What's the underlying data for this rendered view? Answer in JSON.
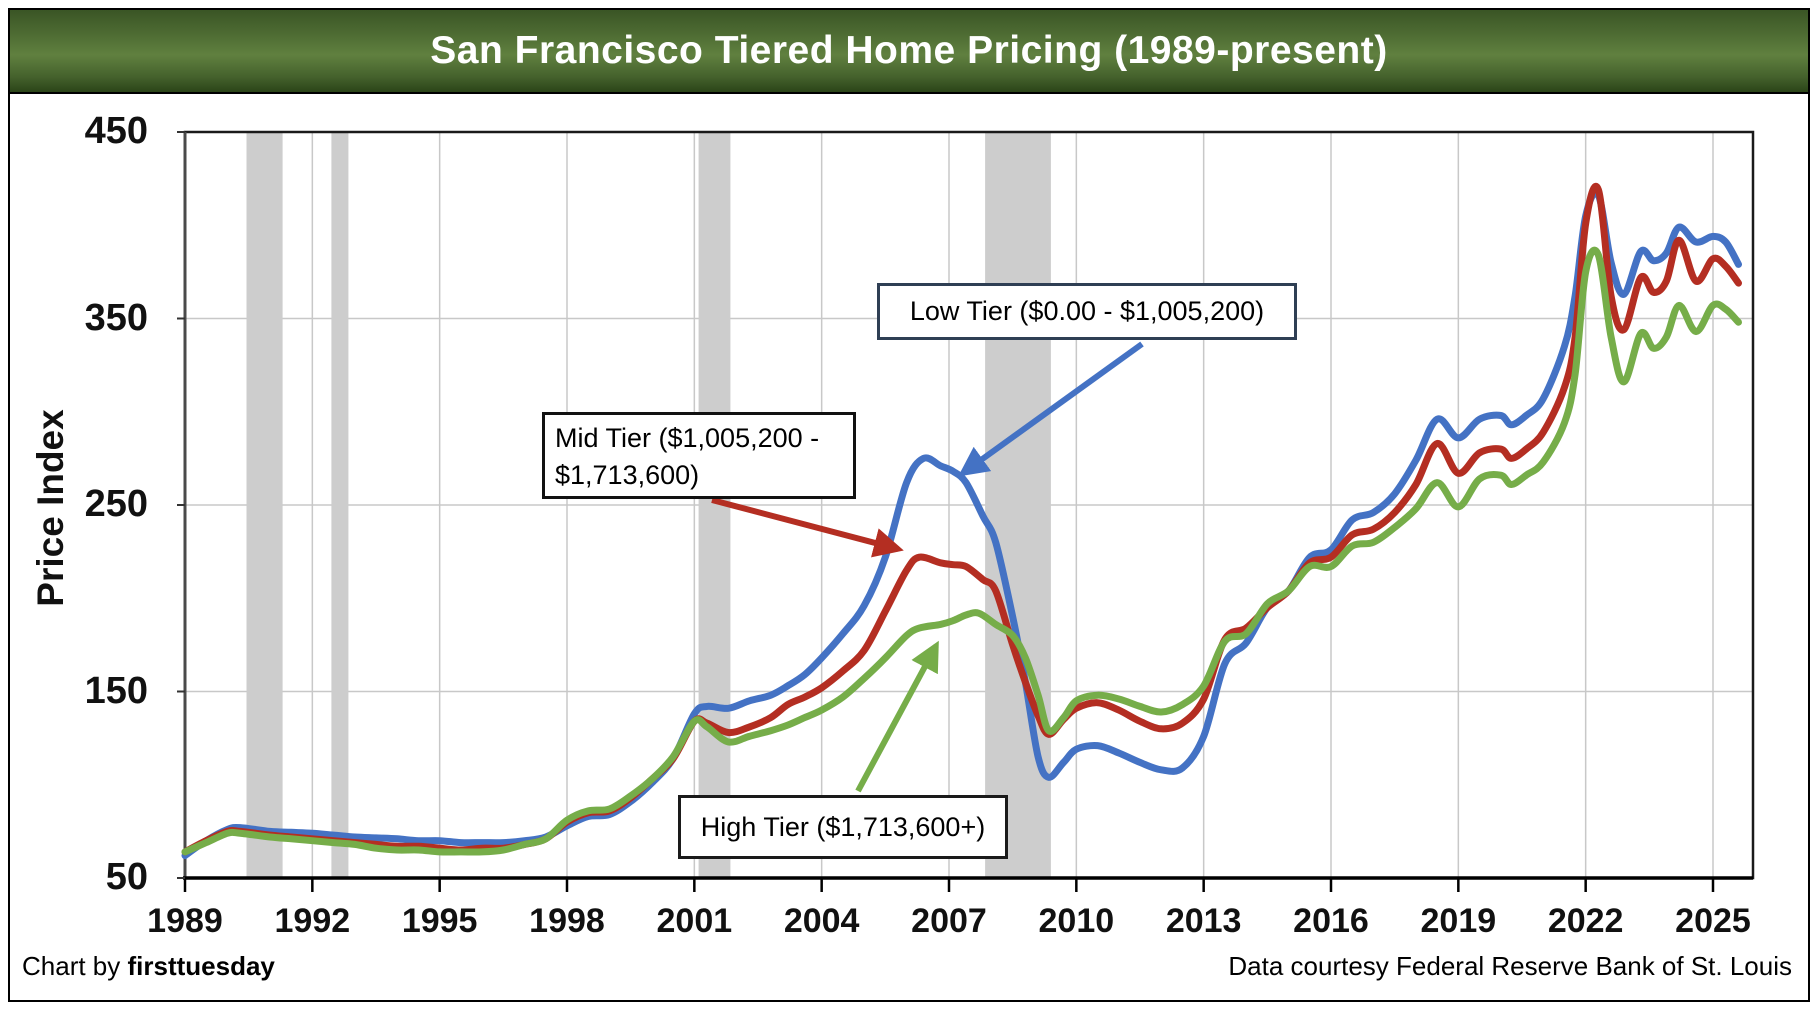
{
  "title": "San Francisco Tiered Home Pricing (1989-present)",
  "y_axis": {
    "label": "Price Index",
    "ticks": [
      450,
      350,
      250,
      150,
      50
    ]
  },
  "x_axis": {
    "ticks": [
      1989,
      1992,
      1995,
      1998,
      2001,
      2004,
      2007,
      2010,
      2013,
      2016,
      2019,
      2022,
      2025
    ]
  },
  "footer": {
    "left_prefix": "Chart by ",
    "left_brand": "firsttuesday",
    "right": "Data courtesy Federal Reserve Bank of St. Louis"
  },
  "colors": {
    "low": "#4472c4",
    "mid": "#b42e22",
    "high": "#76ad49",
    "recession_band": "#cdcdcd",
    "gridline": "#c8c8c8",
    "annotation_border_low": "#2f3f54",
    "title_bar_green": "#4e6c33"
  },
  "chart_data": {
    "type": "line",
    "title": "San Francisco Tiered Home Pricing (1989-present)",
    "xlabel": "",
    "ylabel": "Price Index",
    "ylim": [
      50,
      450
    ],
    "xlim": [
      1989,
      2025.9
    ],
    "grid": true,
    "legend_position": "inline-annotation-boxes",
    "recession_bands": [
      [
        1990.45,
        1991.3
      ],
      [
        1992.45,
        1992.85
      ],
      [
        2001.1,
        2001.85
      ],
      [
        2007.85,
        2009.4
      ]
    ],
    "annotations": {
      "low": {
        "label": "Low Tier ($0.00 - $1,005,200)"
      },
      "mid": {
        "label": "Mid Tier ($1,005,200 - $1,713,600)",
        "lines": [
          "Mid Tier ($1,005,200 -",
          "$1,713,600)"
        ]
      },
      "high": {
        "label": "High Tier ($1,713,600+)"
      }
    },
    "series": [
      {
        "name": "Low Tier",
        "range": "$0.00 - $1,005,200",
        "color_key": "low",
        "points": [
          [
            1989,
            62
          ],
          [
            1989.5,
            70
          ],
          [
            1990,
            76
          ],
          [
            1990.3,
            77
          ],
          [
            1991,
            75
          ],
          [
            1991.5,
            74.5
          ],
          [
            1992,
            74
          ],
          [
            1992.5,
            73
          ],
          [
            1993,
            72
          ],
          [
            1993.5,
            71.5
          ],
          [
            1994,
            71
          ],
          [
            1994.5,
            70
          ],
          [
            1995,
            70
          ],
          [
            1995.5,
            69
          ],
          [
            1996,
            69
          ],
          [
            1996.5,
            69
          ],
          [
            1997,
            70
          ],
          [
            1997.5,
            72
          ],
          [
            1998,
            78
          ],
          [
            1998.5,
            83
          ],
          [
            1999,
            84
          ],
          [
            1999.5,
            91
          ],
          [
            2000,
            101
          ],
          [
            2000.5,
            114
          ],
          [
            2001,
            138
          ],
          [
            2001.3,
            142
          ],
          [
            2001.8,
            141
          ],
          [
            2002.3,
            145
          ],
          [
            2002.8,
            148
          ],
          [
            2003.2,
            153
          ],
          [
            2003.6,
            159
          ],
          [
            2004,
            168
          ],
          [
            2004.5,
            181
          ],
          [
            2005,
            196
          ],
          [
            2005.5,
            222
          ],
          [
            2006,
            262
          ],
          [
            2006.4,
            275
          ],
          [
            2006.8,
            271
          ],
          [
            2007.1,
            268
          ],
          [
            2007.4,
            262
          ],
          [
            2007.8,
            244
          ],
          [
            2008.1,
            230
          ],
          [
            2008.5,
            190
          ],
          [
            2008.8,
            155
          ],
          [
            2009.1,
            115
          ],
          [
            2009.35,
            104
          ],
          [
            2009.7,
            112
          ],
          [
            2010,
            119
          ],
          [
            2010.5,
            121
          ],
          [
            2011,
            117
          ],
          [
            2011.5,
            112
          ],
          [
            2012,
            108
          ],
          [
            2012.5,
            109
          ],
          [
            2013,
            126
          ],
          [
            2013.5,
            165
          ],
          [
            2014,
            176
          ],
          [
            2014.5,
            195
          ],
          [
            2015,
            204
          ],
          [
            2015.5,
            222
          ],
          [
            2016,
            226
          ],
          [
            2016.5,
            242
          ],
          [
            2017,
            246
          ],
          [
            2017.5,
            256
          ],
          [
            2018,
            274
          ],
          [
            2018.5,
            296
          ],
          [
            2019,
            286
          ],
          [
            2019.5,
            296
          ],
          [
            2020,
            298
          ],
          [
            2020.25,
            293
          ],
          [
            2020.6,
            298
          ],
          [
            2021,
            307
          ],
          [
            2021.5,
            335
          ],
          [
            2021.75,
            362
          ],
          [
            2022,
            405
          ],
          [
            2022.3,
            416
          ],
          [
            2022.6,
            380
          ],
          [
            2022.9,
            363
          ],
          [
            2023.3,
            386
          ],
          [
            2023.6,
            381
          ],
          [
            2023.9,
            385
          ],
          [
            2024.2,
            399
          ],
          [
            2024.6,
            391
          ],
          [
            2025,
            394
          ],
          [
            2025.3,
            391
          ],
          [
            2025.6,
            379
          ]
        ]
      },
      {
        "name": "Mid Tier",
        "range": "$1,005,200 - $1,713,600",
        "color_key": "mid",
        "points": [
          [
            1989,
            64
          ],
          [
            1989.5,
            70
          ],
          [
            1990,
            75
          ],
          [
            1990.3,
            75
          ],
          [
            1991,
            73
          ],
          [
            1991.5,
            72
          ],
          [
            1992,
            71
          ],
          [
            1992.5,
            70
          ],
          [
            1993,
            69
          ],
          [
            1993.5,
            68
          ],
          [
            1994,
            67
          ],
          [
            1994.5,
            67
          ],
          [
            1995,
            66
          ],
          [
            1995.5,
            65
          ],
          [
            1996,
            66
          ],
          [
            1996.5,
            66
          ],
          [
            1997,
            68
          ],
          [
            1997.5,
            71
          ],
          [
            1998,
            80
          ],
          [
            1998.5,
            85
          ],
          [
            1999,
            86
          ],
          [
            1999.5,
            93
          ],
          [
            2000,
            103
          ],
          [
            2000.5,
            114
          ],
          [
            2001,
            134
          ],
          [
            2001.3,
            133
          ],
          [
            2001.8,
            128
          ],
          [
            2002.3,
            131
          ],
          [
            2002.8,
            136
          ],
          [
            2003.2,
            143
          ],
          [
            2003.6,
            147
          ],
          [
            2004,
            152
          ],
          [
            2004.5,
            161
          ],
          [
            2005,
            172
          ],
          [
            2005.5,
            193
          ],
          [
            2006,
            215
          ],
          [
            2006.3,
            222
          ],
          [
            2006.8,
            219
          ],
          [
            2007.1,
            218
          ],
          [
            2007.4,
            217
          ],
          [
            2007.8,
            210
          ],
          [
            2008.1,
            204
          ],
          [
            2008.5,
            175
          ],
          [
            2008.8,
            155
          ],
          [
            2009.1,
            137
          ],
          [
            2009.35,
            127
          ],
          [
            2009.7,
            135
          ],
          [
            2010,
            141
          ],
          [
            2010.5,
            144
          ],
          [
            2011,
            140
          ],
          [
            2011.5,
            134
          ],
          [
            2012,
            130
          ],
          [
            2012.5,
            133
          ],
          [
            2013,
            146
          ],
          [
            2013.5,
            178
          ],
          [
            2014,
            184
          ],
          [
            2014.5,
            195
          ],
          [
            2015,
            204
          ],
          [
            2015.5,
            219
          ],
          [
            2016,
            222
          ],
          [
            2016.5,
            234
          ],
          [
            2017,
            237
          ],
          [
            2017.5,
            246
          ],
          [
            2018,
            261
          ],
          [
            2018.5,
            283
          ],
          [
            2019,
            267
          ],
          [
            2019.5,
            278
          ],
          [
            2020,
            280
          ],
          [
            2020.25,
            275
          ],
          [
            2020.6,
            280
          ],
          [
            2021,
            289
          ],
          [
            2021.5,
            313
          ],
          [
            2021.75,
            340
          ],
          [
            2022,
            401
          ],
          [
            2022.3,
            419
          ],
          [
            2022.6,
            362
          ],
          [
            2022.9,
            344
          ],
          [
            2023.3,
            372
          ],
          [
            2023.6,
            364
          ],
          [
            2023.9,
            370
          ],
          [
            2024.2,
            392
          ],
          [
            2024.6,
            370
          ],
          [
            2025,
            382
          ],
          [
            2025.3,
            378
          ],
          [
            2025.6,
            369
          ]
        ]
      },
      {
        "name": "High Tier",
        "range": "$1,713,600+",
        "color_key": "high",
        "points": [
          [
            1989,
            64
          ],
          [
            1989.5,
            69
          ],
          [
            1990,
            74
          ],
          [
            1990.3,
            74
          ],
          [
            1991,
            72
          ],
          [
            1991.5,
            71
          ],
          [
            1992,
            70
          ],
          [
            1992.5,
            69
          ],
          [
            1993,
            68
          ],
          [
            1993.5,
            66
          ],
          [
            1994,
            65
          ],
          [
            1994.5,
            65
          ],
          [
            1995,
            64
          ],
          [
            1995.5,
            64
          ],
          [
            1996,
            64
          ],
          [
            1996.5,
            65
          ],
          [
            1997,
            68
          ],
          [
            1997.5,
            71
          ],
          [
            1998,
            81
          ],
          [
            1998.5,
            86
          ],
          [
            1999,
            87
          ],
          [
            1999.5,
            94
          ],
          [
            2000,
            103
          ],
          [
            2000.5,
            115
          ],
          [
            2001,
            134
          ],
          [
            2001.3,
            131
          ],
          [
            2001.8,
            123
          ],
          [
            2002.3,
            126
          ],
          [
            2002.8,
            129
          ],
          [
            2003.2,
            132
          ],
          [
            2003.6,
            136
          ],
          [
            2004,
            140
          ],
          [
            2004.5,
            147
          ],
          [
            2005,
            157
          ],
          [
            2005.5,
            168
          ],
          [
            2006,
            180
          ],
          [
            2006.3,
            184
          ],
          [
            2006.8,
            186
          ],
          [
            2007.1,
            188
          ],
          [
            2007.4,
            191
          ],
          [
            2007.7,
            192
          ],
          [
            2008.1,
            186
          ],
          [
            2008.5,
            180
          ],
          [
            2008.8,
            168
          ],
          [
            2009.1,
            148
          ],
          [
            2009.35,
            129
          ],
          [
            2009.7,
            136
          ],
          [
            2010,
            145
          ],
          [
            2010.5,
            148
          ],
          [
            2011,
            146
          ],
          [
            2011.5,
            142
          ],
          [
            2012,
            139
          ],
          [
            2012.5,
            143
          ],
          [
            2013,
            153
          ],
          [
            2013.5,
            177
          ],
          [
            2014,
            181
          ],
          [
            2014.5,
            197
          ],
          [
            2015,
            204
          ],
          [
            2015.5,
            217
          ],
          [
            2016,
            217
          ],
          [
            2016.5,
            228
          ],
          [
            2017,
            230
          ],
          [
            2017.5,
            238
          ],
          [
            2018,
            248
          ],
          [
            2018.5,
            262
          ],
          [
            2019,
            249
          ],
          [
            2019.5,
            264
          ],
          [
            2020,
            266
          ],
          [
            2020.25,
            261
          ],
          [
            2020.6,
            266
          ],
          [
            2021,
            273
          ],
          [
            2021.5,
            294
          ],
          [
            2021.75,
            320
          ],
          [
            2022,
            375
          ],
          [
            2022.3,
            384
          ],
          [
            2022.6,
            340
          ],
          [
            2022.9,
            316
          ],
          [
            2023.3,
            342
          ],
          [
            2023.6,
            334
          ],
          [
            2023.9,
            340
          ],
          [
            2024.2,
            357
          ],
          [
            2024.6,
            343
          ],
          [
            2025,
            357
          ],
          [
            2025.3,
            355
          ],
          [
            2025.6,
            348
          ]
        ]
      }
    ]
  }
}
